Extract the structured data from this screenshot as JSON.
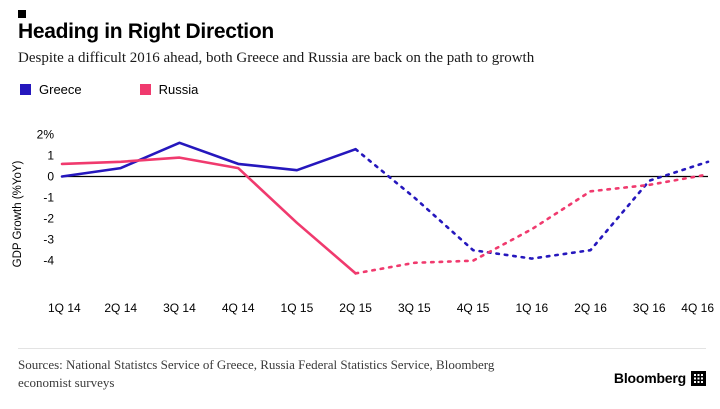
{
  "header": {
    "title": "Heading in Right Direction",
    "subtitle": "Despite a difficult 2016 ahead, both Greece and Russia are back on the path to growth"
  },
  "legend": [
    {
      "label": "Greece",
      "color": "#2517bd"
    },
    {
      "label": "Russia",
      "color": "#f03a6e"
    }
  ],
  "chart_data": {
    "type": "line",
    "title": "Heading in Right Direction",
    "xlabel": "",
    "ylabel": "GDP Growth (%YoY)",
    "categories": [
      "1Q 14",
      "2Q 14",
      "3Q 14",
      "4Q 14",
      "1Q 15",
      "2Q 15",
      "3Q 15",
      "4Q 15",
      "1Q 16",
      "2Q 16",
      "3Q 16",
      "4Q 16"
    ],
    "series": [
      {
        "name": "Greece",
        "color": "#2517bd",
        "values": [
          0.0,
          0.4,
          1.6,
          0.6,
          0.3,
          1.3,
          -1.0,
          -3.5,
          -3.9,
          -3.5,
          -0.2,
          0.7
        ],
        "solid_until_index": 5
      },
      {
        "name": "Russia",
        "color": "#f03a6e",
        "values": [
          0.6,
          0.7,
          0.9,
          0.4,
          -2.2,
          -4.6,
          -4.1,
          -4.0,
          -2.5,
          -0.7,
          -0.4,
          0.1
        ],
        "solid_until_index": 5
      }
    ],
    "y_ticks": [
      {
        "value": 2,
        "label": "2%"
      },
      {
        "value": 1,
        "label": "1"
      },
      {
        "value": 0,
        "label": "0"
      },
      {
        "value": -1,
        "label": "-1"
      },
      {
        "value": -2,
        "label": "-2"
      },
      {
        "value": -3,
        "label": "-3"
      },
      {
        "value": -4,
        "label": "-4"
      }
    ],
    "ylim": [
      -5.2,
      2.4
    ],
    "zero_line": true,
    "grid": false,
    "legend_position": "top-left",
    "forecast_style": "dashed"
  },
  "footer": {
    "sources_line1": "Sources: National Statistcs Service of Greece, Russia Federal Statistics Service, Bloomberg",
    "sources_line2": "economist surveys",
    "brand": "Bloomberg"
  }
}
